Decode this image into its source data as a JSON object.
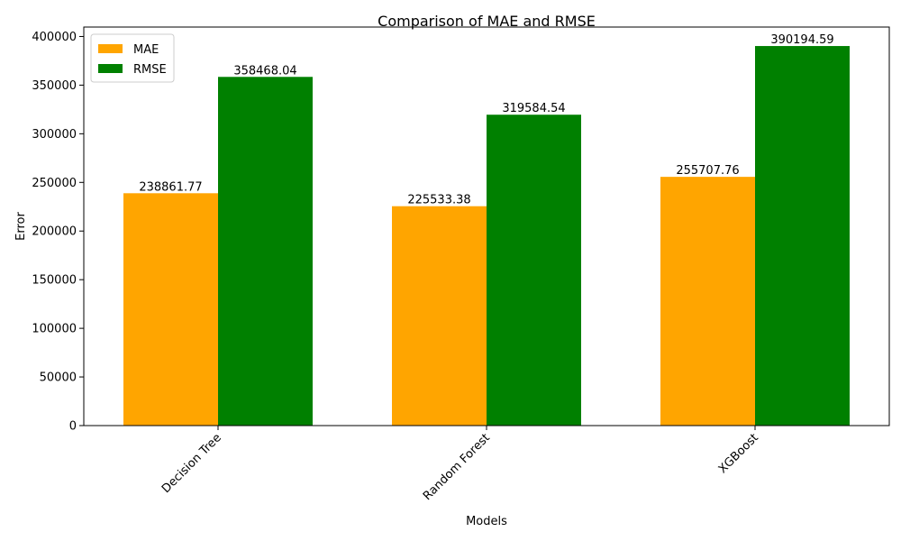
{
  "chart_data": {
    "type": "bar",
    "title": "Comparison of MAE and RMSE",
    "xlabel": "Models",
    "ylabel": "Error",
    "categories": [
      "Decision Tree",
      "Random Forest",
      "XGBoost"
    ],
    "series": [
      {
        "name": "MAE",
        "color": "#ffa500",
        "values": [
          238861.77,
          225533.38,
          255707.76
        ],
        "labels": [
          "238861.77",
          "225533.38",
          "255707.76"
        ]
      },
      {
        "name": "RMSE",
        "color": "#008000",
        "values": [
          358468.04,
          319584.54,
          390194.59
        ],
        "labels": [
          "358468.04",
          "319584.54",
          "390194.59"
        ]
      }
    ],
    "ylim": [
      0,
      409704.32
    ],
    "yticks": [
      0,
      50000,
      100000,
      150000,
      200000,
      250000,
      300000,
      350000,
      400000
    ],
    "legend": "top-left",
    "grid": false
  }
}
